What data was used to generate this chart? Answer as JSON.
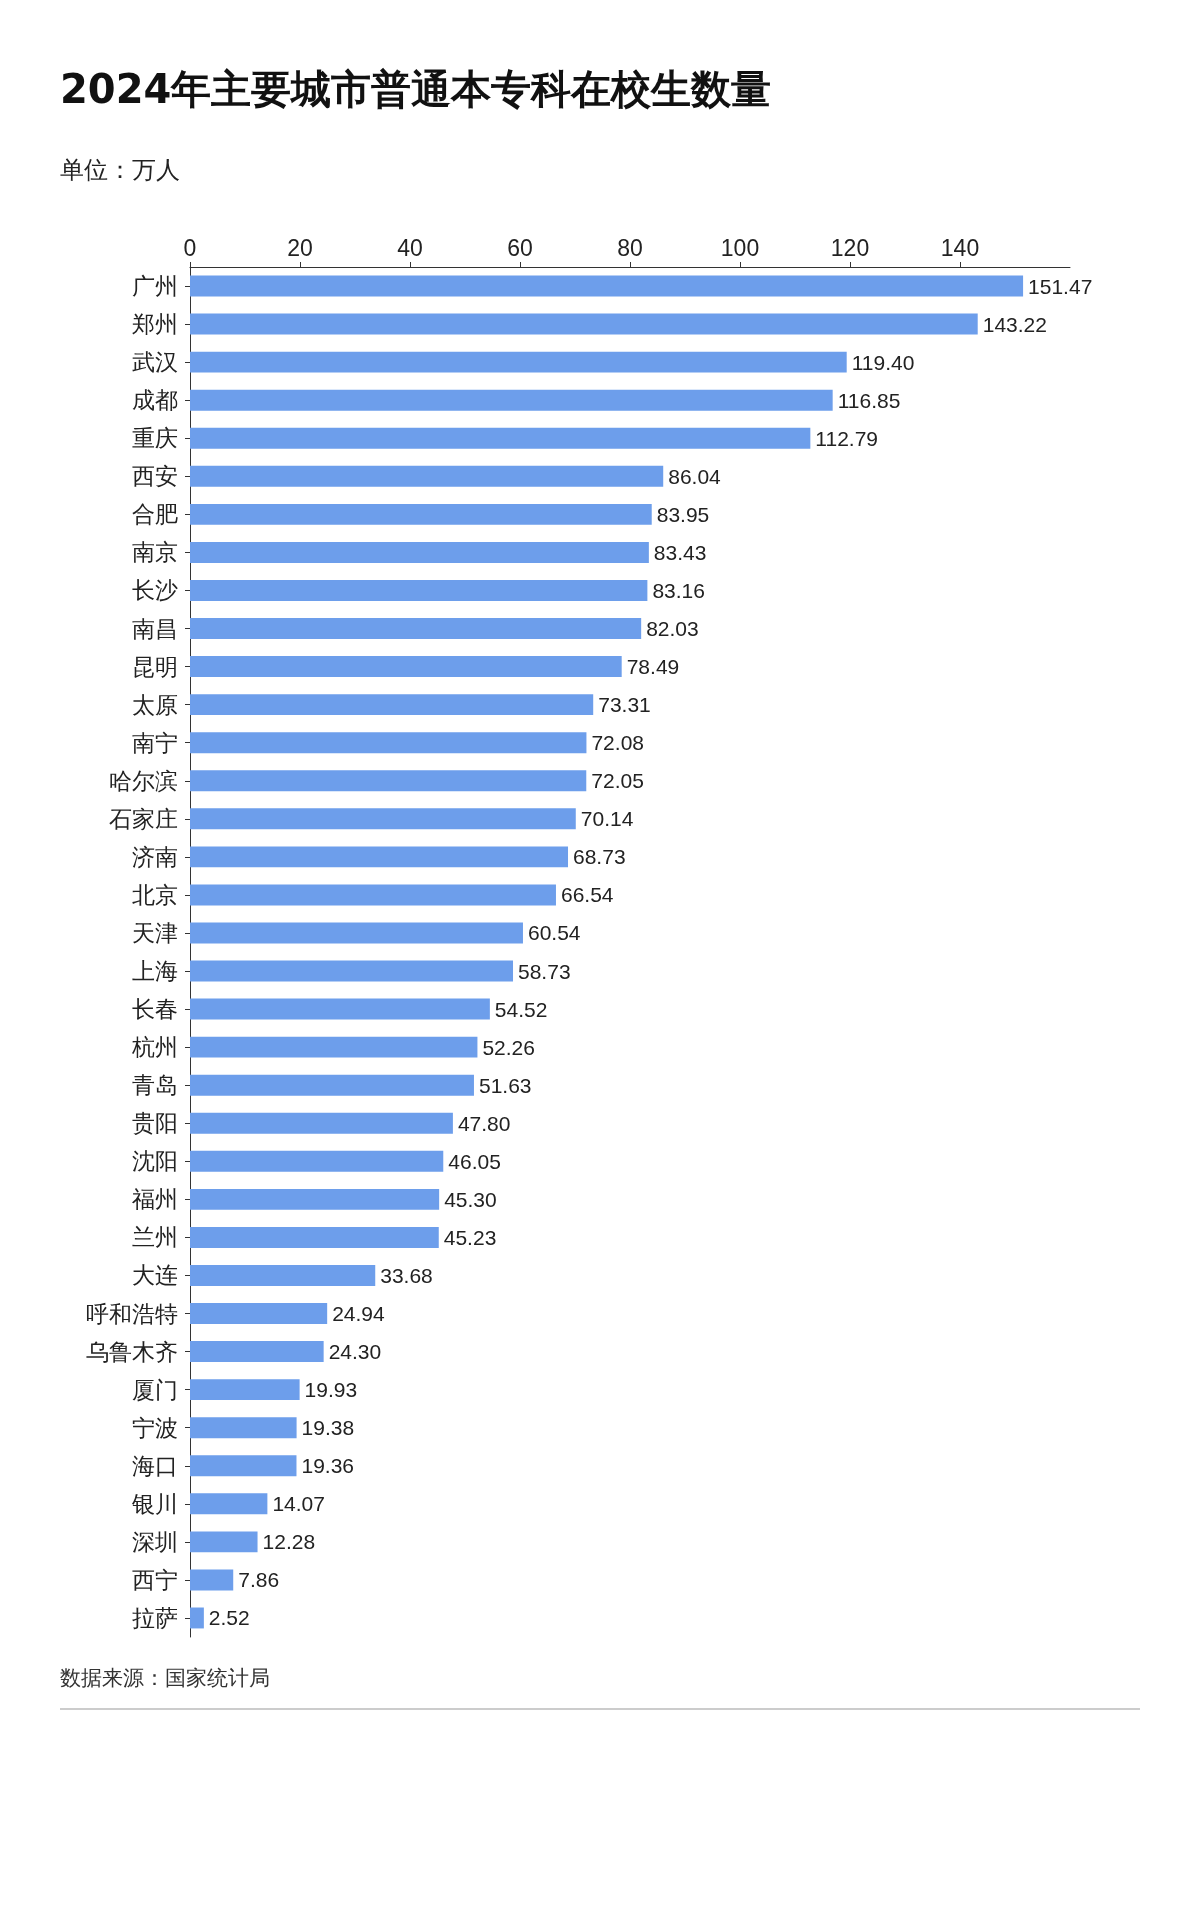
{
  "chart_data": {
    "type": "bar",
    "orientation": "horizontal",
    "title": "2024年主要城市普通本专科在校生数量",
    "subtitle": "单位：万人",
    "annotations": [
      "数据来源：国家统计局"
    ],
    "categories": [
      "广州",
      "郑州",
      "武汉",
      "成都",
      "重庆",
      "西安",
      "合肥",
      "南京",
      "长沙",
      "南昌",
      "昆明",
      "太原",
      "南宁",
      "哈尔滨",
      "石家庄",
      "济南",
      "北京",
      "天津",
      "上海",
      "长春",
      "杭州",
      "青岛",
      "贵阳",
      "沈阳",
      "福州",
      "兰州",
      "大连",
      "呼和浩特",
      "乌鲁木齐",
      "厦门",
      "宁波",
      "海口",
      "银川",
      "深圳",
      "西宁",
      "拉萨"
    ],
    "values": [
      151.47,
      143.22,
      119.4,
      116.85,
      112.79,
      86.04,
      83.95,
      83.43,
      83.16,
      82.03,
      78.49,
      73.31,
      72.08,
      72.05,
      70.14,
      68.73,
      66.54,
      60.54,
      58.73,
      54.52,
      52.26,
      51.63,
      47.8,
      46.05,
      45.3,
      45.23,
      33.68,
      24.94,
      24.3,
      19.93,
      19.38,
      19.36,
      14.07,
      12.28,
      7.86,
      2.52
    ],
    "value_labels": [
      "151.47",
      "143.22",
      "119.40",
      "116.85",
      "112.79",
      "86.04",
      "83.95",
      "83.43",
      "83.16",
      "82.03",
      "78.49",
      "73.31",
      "72.08",
      "72.05",
      "70.14",
      "68.73",
      "66.54",
      "60.54",
      "58.73",
      "54.52",
      "52.26",
      "51.63",
      "47.80",
      "46.05",
      "45.30",
      "45.23",
      "33.68",
      "24.94",
      "24.30",
      "19.93",
      "19.38",
      "19.36",
      "14.07",
      "12.28",
      "7.86",
      "2.52"
    ],
    "color": "#6d9eeb",
    "xlim": [
      0,
      160
    ],
    "xticks": [
      0,
      20,
      40,
      60,
      80,
      100,
      120,
      140
    ],
    "grid": false
  }
}
